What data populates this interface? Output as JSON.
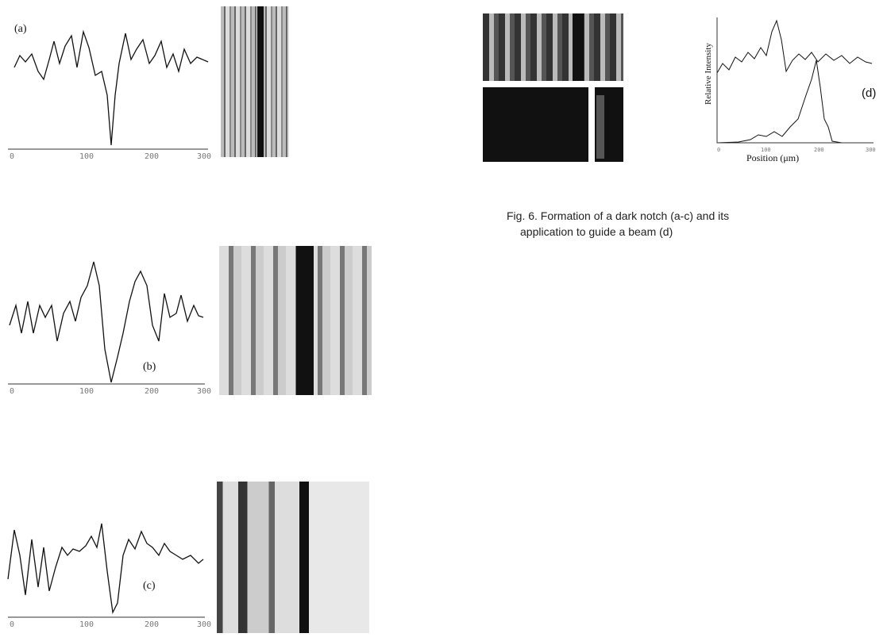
{
  "panels": [
    {
      "label": "(a)",
      "xticks": [
        "0",
        "100",
        "200",
        "300"
      ]
    },
    {
      "label": "(b)",
      "xticks": [
        "0",
        "100",
        "200",
        "300"
      ]
    },
    {
      "label": "(c)",
      "xticks": [
        "0",
        "100",
        "200",
        "300"
      ]
    }
  ],
  "panel_d": {
    "label": "(d)",
    "y_label": "Relative Intensity",
    "x_label": "Position (μm)",
    "xticks": [
      "0",
      "100",
      "200",
      "300"
    ]
  },
  "caption": {
    "lines": [
      "Fig. 6. Formation of a dark notch (a-c) and its",
      "application to guide a beam (d)"
    ]
  }
}
